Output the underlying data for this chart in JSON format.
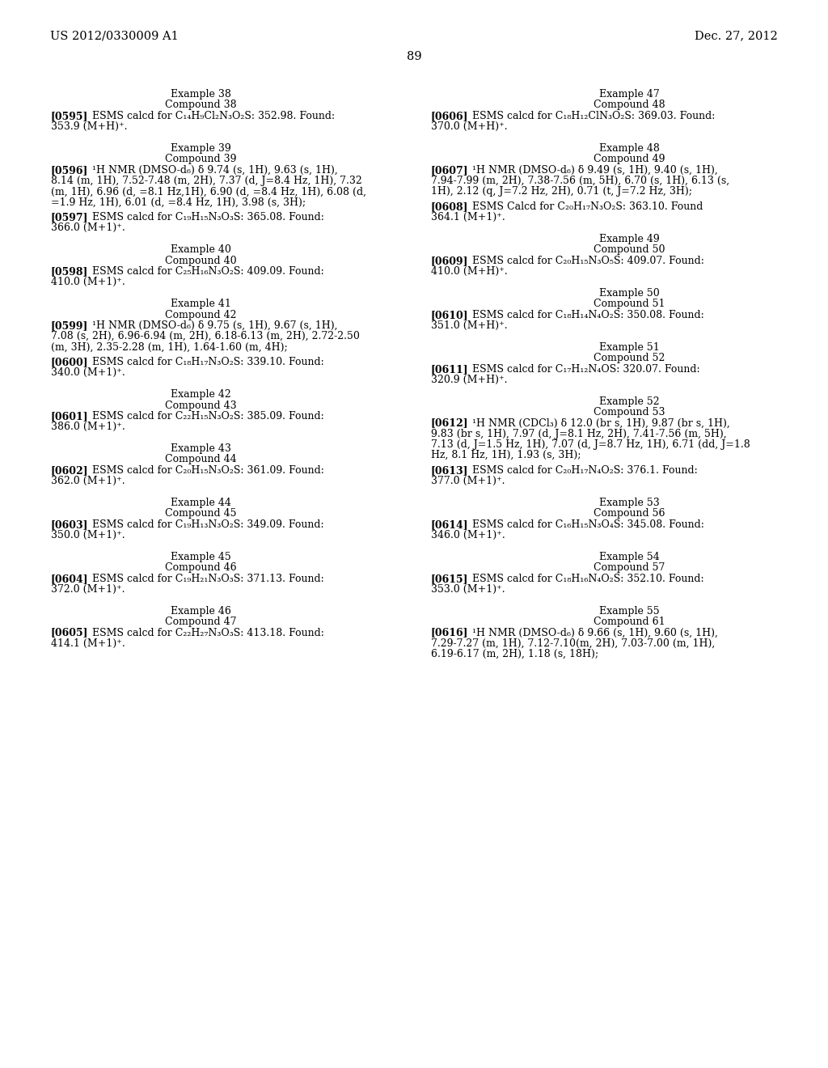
{
  "header_left": "US 2012/0330009 A1",
  "header_right": "Dec. 27, 2012",
  "page_number": "89",
  "background_color": "#ffffff",
  "left_column": [
    {
      "type": "example_heading",
      "text": "Example 38"
    },
    {
      "type": "compound_heading",
      "text": "Compound 38"
    },
    {
      "type": "paragraph",
      "tag": "[0595]",
      "body": "   ESMS calcd for C₁₄H₉Cl₂N₃O₂S: 352.98. Found:\n353.9 (M+H)⁺."
    },
    {
      "type": "example_heading",
      "text": "Example 39"
    },
    {
      "type": "compound_heading",
      "text": "Compound 39"
    },
    {
      "type": "paragraph",
      "tag": "[0596]",
      "body": "   ¹H NMR (DMSO-d₆) δ 9.74 (s, 1H), 9.63 (s, 1H),\n8.14 (m, 1H), 7.52-7.48 (m, 2H), 7.37 (d, J=8.4 Hz, 1H), 7.32\n(m, 1H), 6.96 (d, =8.1 Hz,1H), 6.90 (d, =8.4 Hz, 1H), 6.08 (d,\n=1.9 Hz, 1H), 6.01 (d, =8.4 Hz, 1H), 3.98 (s, 3H);"
    },
    {
      "type": "paragraph",
      "tag": "[0597]",
      "body": "   ESMS calcd for C₁₉H₁₅N₃O₃S: 365.08. Found:\n366.0 (M+1)⁺."
    },
    {
      "type": "example_heading",
      "text": "Example 40"
    },
    {
      "type": "compound_heading",
      "text": "Compound 40"
    },
    {
      "type": "paragraph",
      "tag": "[0598]",
      "body": "   ESMS calcd for C₂₅H₁₆N₃O₂S: 409.09. Found:\n410.0 (M+1)⁺."
    },
    {
      "type": "example_heading",
      "text": "Example 41"
    },
    {
      "type": "compound_heading",
      "text": "Compound 42"
    },
    {
      "type": "paragraph",
      "tag": "[0599]",
      "body": "   ¹H NMR (DMSO-d₆) δ 9.75 (s, 1H), 9.67 (s, 1H),\n7.08 (s, 2H), 6.96-6.94 (m, 2H), 6.18-6.13 (m, 2H), 2.72-2.50\n(m, 3H), 2.35-2.28 (m, 1H), 1.64-1.60 (m, 4H);"
    },
    {
      "type": "paragraph",
      "tag": "[0600]",
      "body": "   ESMS calcd for C₁₈H₁₇N₃O₂S: 339.10. Found:\n340.0 (M+1)⁺."
    },
    {
      "type": "example_heading",
      "text": "Example 42"
    },
    {
      "type": "compound_heading",
      "text": "Compound 43"
    },
    {
      "type": "paragraph",
      "tag": "[0601]",
      "body": "   ESMS calcd for C₂₂H₁₅N₃O₂S: 385.09. Found:\n386.0 (M+1)⁺."
    },
    {
      "type": "example_heading",
      "text": "Example 43"
    },
    {
      "type": "compound_heading",
      "text": "Compound 44"
    },
    {
      "type": "paragraph",
      "tag": "[0602]",
      "body": "   ESMS calcd for C₂₀H₁₅N₃O₂S: 361.09. Found:\n362.0 (M+1)⁺."
    },
    {
      "type": "example_heading",
      "text": "Example 44"
    },
    {
      "type": "compound_heading",
      "text": "Compound 45"
    },
    {
      "type": "paragraph",
      "tag": "[0603]",
      "body": "   ESMS calcd for C₁₉H₁₃N₃O₂S: 349.09. Found:\n350.0 (M+1)⁺."
    },
    {
      "type": "example_heading",
      "text": "Example 45"
    },
    {
      "type": "compound_heading",
      "text": "Compound 46"
    },
    {
      "type": "paragraph",
      "tag": "[0604]",
      "body": "   ESMS calcd for C₁₉H₂₁N₃O₃S: 371.13. Found:\n372.0 (M+1)⁺."
    },
    {
      "type": "example_heading",
      "text": "Example 46"
    },
    {
      "type": "compound_heading",
      "text": "Compound 47"
    },
    {
      "type": "paragraph",
      "tag": "[0605]",
      "body": "   ESMS calcd for C₂₂H₂₇N₃O₃S: 413.18. Found:\n414.1 (M+1)⁺."
    }
  ],
  "right_column": [
    {
      "type": "example_heading",
      "text": "Example 47"
    },
    {
      "type": "compound_heading",
      "text": "Compound 48"
    },
    {
      "type": "paragraph",
      "tag": "[0606]",
      "body": "   ESMS calcd for C₁₈H₁₂ClN₃O₂S: 369.03. Found:\n370.0 (M+H)⁺."
    },
    {
      "type": "example_heading",
      "text": "Example 48"
    },
    {
      "type": "compound_heading",
      "text": "Compound 49"
    },
    {
      "type": "paragraph",
      "tag": "[0607]",
      "body": "   ¹H NMR (DMSO-d₆) δ 9.49 (s, 1H), 9.40 (s, 1H),\n7.94-7.99 (m, 2H), 7.38-7.56 (m, 5H), 6.70 (s, 1H), 6.13 (s,\n1H), 2.12 (q, J=7.2 Hz, 2H), 0.71 (t, J=7.2 Hz, 3H);"
    },
    {
      "type": "paragraph",
      "tag": "[0608]",
      "body": "   ESMS Calcd for C₂₀H₁₇N₃O₂S: 363.10. Found\n364.1 (M+1)⁺."
    },
    {
      "type": "example_heading",
      "text": "Example 49"
    },
    {
      "type": "compound_heading",
      "text": "Compound 50"
    },
    {
      "type": "paragraph",
      "tag": "[0609]",
      "body": "   ESMS calcd for C₂₀H₁₅N₃O₅S: 409.07. Found:\n410.0 (M+H)⁺."
    },
    {
      "type": "example_heading",
      "text": "Example 50"
    },
    {
      "type": "compound_heading",
      "text": "Compound 51"
    },
    {
      "type": "paragraph",
      "tag": "[0610]",
      "body": "   ESMS calcd for C₁₈H₁₄N₄O₂S: 350.08. Found:\n351.0 (M+H)⁺."
    },
    {
      "type": "example_heading",
      "text": "Example 51"
    },
    {
      "type": "compound_heading",
      "text": "Compound 52"
    },
    {
      "type": "paragraph",
      "tag": "[0611]",
      "body": "   ESMS calcd for C₁₇H₁₂N₄OS: 320.07. Found:\n320.9 (M+H)⁺."
    },
    {
      "type": "example_heading",
      "text": "Example 52"
    },
    {
      "type": "compound_heading",
      "text": "Compound 53"
    },
    {
      "type": "paragraph",
      "tag": "[0612]",
      "body": "   ¹H NMR (CDCl₃) δ 12.0 (br s, 1H), 9.87 (br s, 1H),\n9.83 (br s, 1H), 7.97 (d, J=8.1 Hz, 2H), 7.41-7.56 (m, 5H),\n7.13 (d, J=1.5 Hz, 1H), 7.07 (d, J=8.7 Hz, 1H), 6.71 (dd, J=1.8\nHz, 8.1 Hz, 1H), 1.93 (s, 3H);"
    },
    {
      "type": "paragraph",
      "tag": "[0613]",
      "body": "   ESMS calcd for C₂₀H₁₇N₄O₂S: 376.1. Found:\n377.0 (M+1)⁺."
    },
    {
      "type": "example_heading",
      "text": "Example 53"
    },
    {
      "type": "compound_heading",
      "text": "Compound 56"
    },
    {
      "type": "paragraph",
      "tag": "[0614]",
      "body": "   ESMS calcd for C₁₆H₁₅N₃O₄S: 345.08. Found:\n346.0 (M+1)⁺."
    },
    {
      "type": "example_heading",
      "text": "Example 54"
    },
    {
      "type": "compound_heading",
      "text": "Compound 57"
    },
    {
      "type": "paragraph",
      "tag": "[0615]",
      "body": "   ESMS calcd for C₁₈H₁₆N₄O₂S: 352.10. Found:\n353.0 (M+1)⁺."
    },
    {
      "type": "example_heading",
      "text": "Example 55"
    },
    {
      "type": "compound_heading",
      "text": "Compound 61"
    },
    {
      "type": "paragraph",
      "tag": "[0616]",
      "body": "   ¹H NMR (DMSO-d₆) δ 9.66 (s, 1H), 9.60 (s, 1H),\n7.29-7.27 (m, 1H), 7.12-7.10(m, 2H), 7.03-7.00 (m, 1H),\n6.19-6.17 (m, 2H), 1.18 (s, 18H);"
    }
  ],
  "font_size_header": 10.5,
  "font_size_body": 9.0,
  "font_size_heading": 9.0,
  "font_size_page_number": 10.5
}
